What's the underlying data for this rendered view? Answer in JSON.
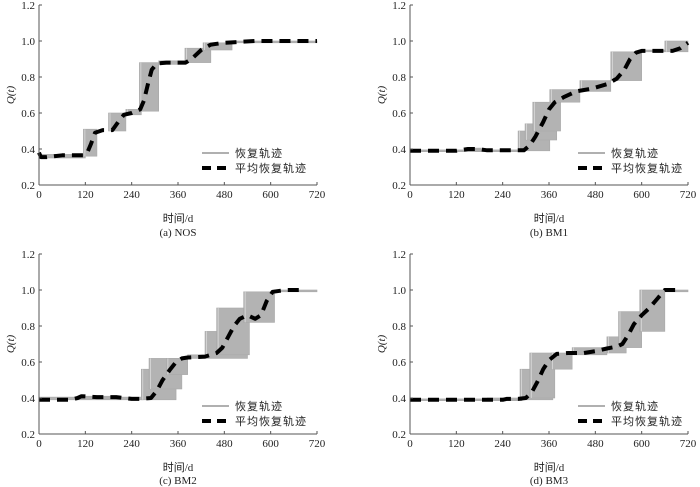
{
  "chart_data": [
    {
      "id": "a",
      "type": "line",
      "caption": "(a)  NOS",
      "xlabel": "时间/d",
      "ylabel": "Q(t)",
      "xlim": [
        0,
        720
      ],
      "ylim": [
        0.2,
        1.2
      ],
      "xticks": [
        0,
        120,
        240,
        360,
        480,
        600,
        720
      ],
      "yticks": [
        0.2,
        0.4,
        0.6,
        0.8,
        1.0,
        1.2
      ],
      "legend": {
        "position": "lower-right",
        "entries": [
          "恢复轨迹",
          "平均恢复轨迹"
        ]
      },
      "band_rects": [
        [
          0,
          120,
          0.35,
          0.37
        ],
        [
          115,
          150,
          0.36,
          0.51
        ],
        [
          180,
          225,
          0.5,
          0.6
        ],
        [
          225,
          265,
          0.59,
          0.62
        ],
        [
          260,
          310,
          0.61,
          0.88
        ],
        [
          310,
          380,
          0.87,
          0.89
        ],
        [
          378,
          445,
          0.88,
          0.96
        ],
        [
          425,
          500,
          0.95,
          0.99
        ],
        [
          500,
          720,
          0.99,
          1.0
        ]
      ],
      "series": [
        {
          "name": "平均恢复轨迹",
          "x": [
            0,
            5,
            20,
            60,
            115,
            125,
            135,
            145,
            165,
            190,
            205,
            220,
            240,
            262,
            272,
            282,
            292,
            305,
            330,
            380,
            395,
            420,
            445,
            480,
            560,
            720
          ],
          "y": [
            0.38,
            0.355,
            0.355,
            0.365,
            0.365,
            0.38,
            0.43,
            0.49,
            0.505,
            0.505,
            0.55,
            0.59,
            0.6,
            0.62,
            0.67,
            0.76,
            0.84,
            0.875,
            0.88,
            0.88,
            0.9,
            0.95,
            0.98,
            0.99,
            1.0,
            1.0
          ]
        }
      ]
    },
    {
      "id": "b",
      "type": "line",
      "caption": "(b)  BM1",
      "xlabel": "时间/d",
      "ylabel": "Q(t)",
      "xlim": [
        0,
        720
      ],
      "ylim": [
        0.2,
        1.2
      ],
      "xticks": [
        0,
        120,
        240,
        360,
        480,
        600,
        720
      ],
      "yticks": [
        0.2,
        0.4,
        0.6,
        0.8,
        1.0,
        1.2
      ],
      "legend": {
        "position": "lower-right",
        "entries": [
          "恢复轨迹",
          "平均恢复轨迹"
        ]
      },
      "band_rects": [
        [
          0,
          280,
          0.385,
          0.395
        ],
        [
          140,
          185,
          0.395,
          0.405
        ],
        [
          280,
          362,
          0.39,
          0.5
        ],
        [
          298,
          380,
          0.45,
          0.54
        ],
        [
          318,
          390,
          0.5,
          0.66
        ],
        [
          362,
          440,
          0.66,
          0.73
        ],
        [
          440,
          520,
          0.72,
          0.78
        ],
        [
          520,
          600,
          0.78,
          0.94
        ],
        [
          600,
          660,
          0.94,
          0.95
        ],
        [
          660,
          720,
          0.94,
          1.0
        ]
      ],
      "series": [
        {
          "name": "平均恢复轨迹",
          "x": [
            0,
            120,
            150,
            175,
            200,
            250,
            295,
            310,
            325,
            345,
            360,
            375,
            400,
            430,
            470,
            510,
            535,
            555,
            570,
            585,
            600,
            650,
            680,
            700,
            720
          ],
          "y": [
            0.39,
            0.39,
            0.4,
            0.4,
            0.393,
            0.393,
            0.393,
            0.42,
            0.47,
            0.55,
            0.62,
            0.66,
            0.69,
            0.72,
            0.735,
            0.76,
            0.79,
            0.84,
            0.9,
            0.935,
            0.945,
            0.945,
            0.945,
            0.96,
            0.99
          ]
        }
      ]
    },
    {
      "id": "c",
      "type": "line",
      "caption": "(c)  BM2",
      "xlabel": "时间/d",
      "ylabel": "Q(t)",
      "xlim": [
        0,
        720
      ],
      "ylim": [
        0.2,
        1.2
      ],
      "xticks": [
        0,
        120,
        240,
        360,
        480,
        600,
        720
      ],
      "yticks": [
        0.2,
        0.4,
        0.6,
        0.8,
        1.0,
        1.2
      ],
      "legend": {
        "position": "lower-right",
        "entries": [
          "恢复轨迹",
          "平均恢复轨迹"
        ]
      },
      "band_rects": [
        [
          0,
          270,
          0.39,
          0.405
        ],
        [
          100,
          200,
          0.4,
          0.41
        ],
        [
          265,
          355,
          0.39,
          0.56
        ],
        [
          285,
          370,
          0.45,
          0.62
        ],
        [
          330,
          385,
          0.53,
          0.62
        ],
        [
          385,
          430,
          0.62,
          0.64
        ],
        [
          430,
          540,
          0.62,
          0.77
        ],
        [
          460,
          545,
          0.64,
          0.9
        ],
        [
          530,
          610,
          0.82,
          0.99
        ],
        [
          610,
          720,
          0.99,
          1.0
        ]
      ],
      "series": [
        {
          "name": "平均恢复轨迹",
          "x": [
            0,
            60,
            80,
            100,
            110,
            150,
            200,
            240,
            260,
            290,
            305,
            320,
            340,
            355,
            370,
            385,
            430,
            460,
            475,
            490,
            505,
            520,
            540,
            560,
            575,
            590,
            605,
            640,
            690
          ],
          "y": [
            0.39,
            0.39,
            0.39,
            0.4,
            0.41,
            0.405,
            0.405,
            0.395,
            0.395,
            0.4,
            0.44,
            0.5,
            0.56,
            0.6,
            0.62,
            0.625,
            0.63,
            0.65,
            0.68,
            0.74,
            0.8,
            0.84,
            0.86,
            0.84,
            0.86,
            0.94,
            0.99,
            1.0,
            1.0
          ]
        }
      ]
    },
    {
      "id": "d",
      "type": "line",
      "caption": "(d)  BM3",
      "xlabel": "时间/d",
      "ylabel": "Q(t)",
      "xlim": [
        0,
        720
      ],
      "ylim": [
        0.2,
        1.2
      ],
      "xticks": [
        0,
        120,
        240,
        360,
        480,
        600,
        720
      ],
      "yticks": [
        0.2,
        0.4,
        0.6,
        0.8,
        1.0,
        1.2
      ],
      "legend": {
        "position": "lower-right",
        "entries": [
          "恢复轨迹",
          "平均恢复轨迹"
        ]
      },
      "band_rects": [
        [
          0,
          290,
          0.385,
          0.395
        ],
        [
          200,
          290,
          0.39,
          0.4
        ],
        [
          285,
          370,
          0.39,
          0.56
        ],
        [
          310,
          375,
          0.4,
          0.65
        ],
        [
          365,
          420,
          0.56,
          0.65
        ],
        [
          420,
          510,
          0.64,
          0.68
        ],
        [
          510,
          560,
          0.65,
          0.74
        ],
        [
          540,
          600,
          0.68,
          0.88
        ],
        [
          595,
          660,
          0.77,
          1.0
        ],
        [
          660,
          720,
          0.99,
          1.0
        ]
      ],
      "series": [
        {
          "name": "平均恢复轨迹",
          "x": [
            0,
            120,
            240,
            250,
            280,
            300,
            315,
            330,
            345,
            360,
            380,
            410,
            450,
            480,
            510,
            535,
            550,
            565,
            580,
            600,
            620,
            640,
            660,
            700
          ],
          "y": [
            0.39,
            0.39,
            0.39,
            0.395,
            0.395,
            0.4,
            0.43,
            0.49,
            0.56,
            0.61,
            0.645,
            0.65,
            0.65,
            0.66,
            0.675,
            0.685,
            0.7,
            0.75,
            0.81,
            0.86,
            0.9,
            0.95,
            1.0,
            1.0
          ]
        }
      ]
    }
  ]
}
